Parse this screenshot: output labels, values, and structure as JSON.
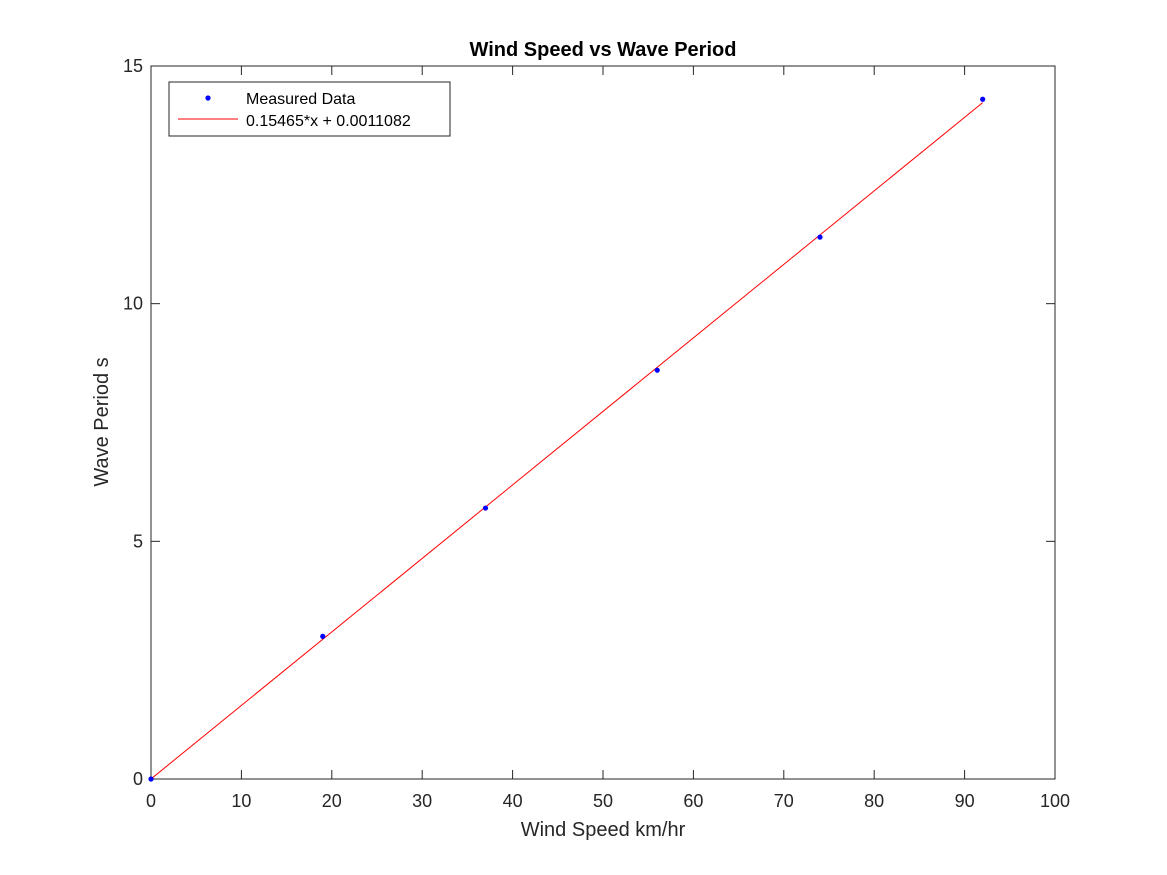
{
  "chart_data": {
    "type": "scatter",
    "title": "Wind Speed vs Wave Period",
    "xlabel": "Wind Speed km/hr",
    "ylabel": "Wave Period s",
    "xlim": [
      0,
      100
    ],
    "ylim": [
      0,
      15
    ],
    "xticks": [
      0,
      10,
      20,
      30,
      40,
      50,
      60,
      70,
      80,
      90,
      100
    ],
    "yticks": [
      0,
      5,
      10,
      15
    ],
    "grid": false,
    "legend_position": "top-left",
    "series": [
      {
        "name": "Measured Data",
        "kind": "scatter",
        "color": "#0000ff",
        "x": [
          0,
          19,
          37,
          56,
          74,
          92
        ],
        "y": [
          0,
          3.0,
          5.7,
          8.6,
          11.4,
          14.3
        ]
      },
      {
        "name": "0.15465*x + 0.0011082",
        "kind": "line",
        "color": "#ff0000",
        "slope": 0.15465,
        "intercept": 0.0011082,
        "x": [
          0,
          92
        ]
      }
    ]
  }
}
